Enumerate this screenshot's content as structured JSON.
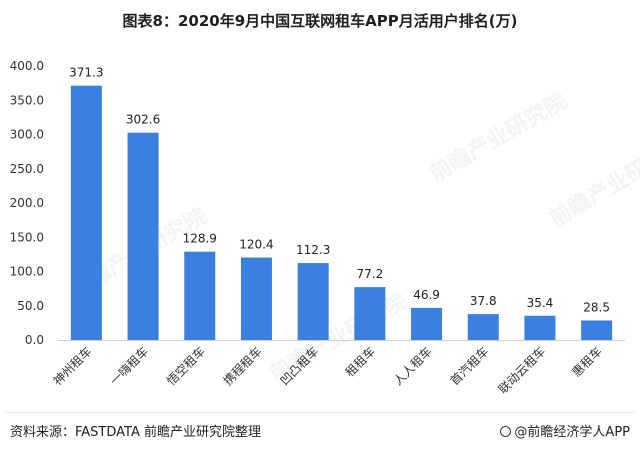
{
  "title": "图表8：2020年9月中国互联网租车APP月活用户排名(万)",
  "source_text": "资料来源：FASTDATA 前瞻产业研究院整理",
  "brand_text": "@前瞻经济学人APP",
  "watermark_text": "前瞻产业研究院",
  "colors": {
    "bar": "#3b7fe0",
    "axis": "#d0d0d0",
    "text": "#333333"
  },
  "chart_data": {
    "type": "bar",
    "title": "图表8：2020年9月中国互联网租车APP月活用户排名(万)",
    "categories": [
      "神州租车",
      "一嗨租车",
      "悟空租车",
      "携程租车",
      "凹凸租车",
      "租租车",
      "人人租车",
      "首汽租车",
      "联动云租车",
      "惠租车"
    ],
    "values": [
      371.3,
      302.6,
      128.9,
      120.4,
      112.3,
      77.2,
      46.9,
      37.8,
      35.4,
      28.5
    ],
    "value_labels": [
      "371.3",
      "302.6",
      "128.9",
      "120.4",
      "112.3",
      "77.2",
      "46.9",
      "37.8",
      "35.4",
      "28.5"
    ],
    "yticks": [
      "0.0",
      "50.0",
      "100.0",
      "150.0",
      "200.0",
      "250.0",
      "300.0",
      "350.0",
      "400.0"
    ],
    "ylim": [
      0,
      400
    ],
    "xlabel": "",
    "ylabel": "",
    "grid": false,
    "legend": "none"
  }
}
